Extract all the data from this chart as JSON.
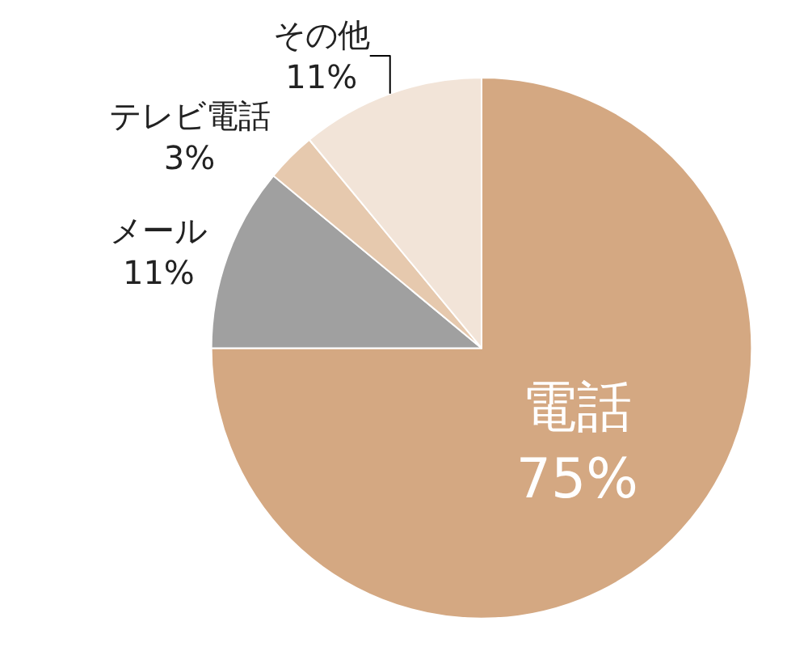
{
  "chart_data": {
    "type": "pie",
    "categories": [
      "電話",
      "メール",
      "テレビ電話",
      "その他"
    ],
    "values": [
      75,
      11,
      3,
      11
    ],
    "value_labels": [
      "75%",
      "11%",
      "3%",
      "11%"
    ],
    "colors": [
      "#d4a882",
      "#a0a0a0",
      "#e6c9ae",
      "#f2e4d8"
    ],
    "legend": false
  }
}
